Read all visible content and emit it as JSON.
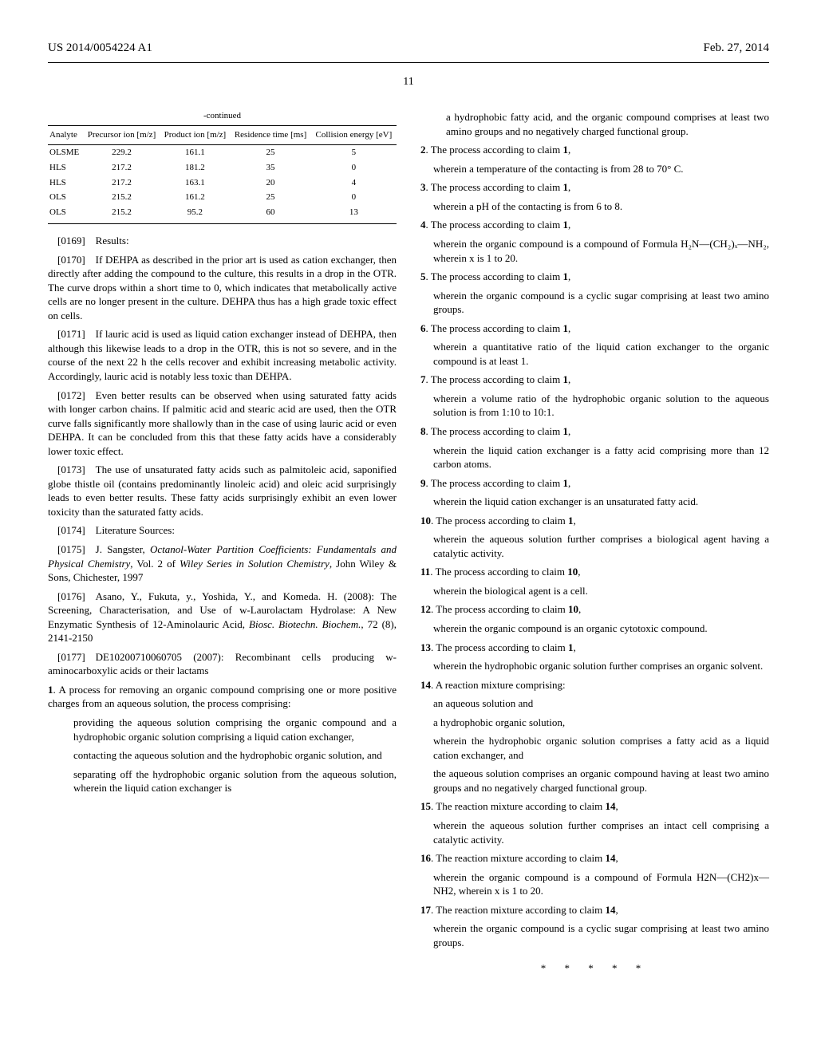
{
  "header": {
    "publication_number": "US 2014/0054224 A1",
    "publication_date": "Feb. 27, 2014",
    "page_number": "11"
  },
  "table": {
    "continued": "-continued",
    "columns": [
      "Analyte",
      "Precursor ion [m/z]",
      "Product ion [m/z]",
      "Residence time [ms]",
      "Collision energy [eV]"
    ],
    "rows": [
      [
        "OLSME",
        "229.2",
        "161.1",
        "25",
        "5"
      ],
      [
        "HLS",
        "217.2",
        "181.2",
        "35",
        "0"
      ],
      [
        "HLS",
        "217.2",
        "163.1",
        "20",
        "4"
      ],
      [
        "OLS",
        "215.2",
        "161.2",
        "25",
        "0"
      ],
      [
        "OLS",
        "215.2",
        "95.2",
        "60",
        "13"
      ]
    ]
  },
  "left_paragraphs": [
    {
      "num": "[0169]",
      "text": "Results:"
    },
    {
      "num": "[0170]",
      "text": "If DEHPA as described in the prior art is used as cation exchanger, then directly after adding the compound to the culture, this results in a drop in the OTR. The curve drops within a short time to 0, which indicates that metabolically active cells are no longer present in the culture. DEHPA thus has a high grade toxic effect on cells."
    },
    {
      "num": "[0171]",
      "text": "If lauric acid is used as liquid cation exchanger instead of DEHPA, then although this likewise leads to a drop in the OTR, this is not so severe, and in the course of the next 22 h the cells recover and exhibit increasing metabolic activity. Accordingly, lauric acid is notably less toxic than DEHPA."
    },
    {
      "num": "[0172]",
      "text": "Even better results can be observed when using saturated fatty acids with longer carbon chains. If palmitic acid and stearic acid are used, then the OTR curve falls significantly more shallowly than in the case of using lauric acid or even DEHPA. It can be concluded from this that these fatty acids have a considerably lower toxic effect."
    },
    {
      "num": "[0173]",
      "text": "The use of unsaturated fatty acids such as palmitoleic acid, saponified globe thistle oil (contains predominantly linoleic acid) and oleic acid surprisingly leads to even better results. These fatty acids surprisingly exhibit an even lower toxicity than the saturated fatty acids."
    },
    {
      "num": "[0174]",
      "text": "Literature Sources:"
    },
    {
      "num": "[0175]",
      "text": "J. Sangster, ",
      "italic": "Octanol-Water Partition Coefficients: Fundamentals and Physical Chemistry",
      "text2": ", Vol. 2 of ",
      "italic2": "Wiley Series in Solution Chemistry",
      "text3": ", John Wiley & Sons, Chichester, 1997"
    },
    {
      "num": "[0176]",
      "text": "Asano, Y., Fukuta, y., Yoshida, Y., and Komeda. H. (2008): The Screening, Characterisation, and Use of w-Laurolactam Hydrolase: A New Enzymatic Synthesis of 12-Aminolauric Acid, ",
      "italic": "Biosc. Biotechn. Biochem.,",
      "text2": " 72 (8), 2141-2150"
    },
    {
      "num": "[0177]",
      "text": "DE10200710060705 (2007): Recombinant cells producing w-aminocarboxylic acids or their lactams"
    }
  ],
  "claim1": {
    "num": "1",
    "intro": ". A process for removing an organic compound comprising one or more positive charges from an aqueous solution, the process comprising:",
    "parts": [
      "providing the aqueous solution comprising the organic compound and a hydrophobic organic solution comprising a liquid cation exchanger,",
      "contacting the aqueous solution and the hydrophobic organic solution, and",
      "separating off the hydrophobic organic solution from the aqueous solution, wherein the liquid cation exchanger is"
    ]
  },
  "right_top": "a hydrophobic fatty acid, and the organic compound comprises at least two amino groups and no negatively charged functional group.",
  "claims": [
    {
      "num": "2",
      "intro": ". The process according to claim ",
      "ref": "1",
      "tail": ",",
      "body": "wherein a temperature of the contacting is from 28 to 70° C."
    },
    {
      "num": "3",
      "intro": ". The process according to claim ",
      "ref": "1",
      "tail": ",",
      "body": "wherein a pH of the contacting is from 6 to 8."
    },
    {
      "num": "4",
      "intro": ". The process according to claim ",
      "ref": "1",
      "tail": ",",
      "body": "wherein the organic compound is a compound of Formula H₂N—(CH₂)ₓ—NH₂, wherein x is 1 to 20."
    },
    {
      "num": "5",
      "intro": ". The process according to claim ",
      "ref": "1",
      "tail": ",",
      "body": "wherein the organic compound is a cyclic sugar comprising at least two amino groups."
    },
    {
      "num": "6",
      "intro": ". The process according to claim ",
      "ref": "1",
      "tail": ",",
      "body": "wherein a quantitative ratio of the liquid cation exchanger to the organic compound is at least 1."
    },
    {
      "num": "7",
      "intro": ". The process according to claim ",
      "ref": "1",
      "tail": ",",
      "body": "wherein a volume ratio of the hydrophobic organic solution to the aqueous solution is from 1:10 to 10:1."
    },
    {
      "num": "8",
      "intro": ". The process according to claim ",
      "ref": "1",
      "tail": ",",
      "body": "wherein the liquid cation exchanger is a fatty acid comprising more than 12 carbon atoms."
    },
    {
      "num": "9",
      "intro": ". The process according to claim ",
      "ref": "1",
      "tail": ",",
      "body": "wherein the liquid cation exchanger is an unsaturated fatty acid."
    },
    {
      "num": "10",
      "intro": ". The process according to claim ",
      "ref": "1",
      "tail": ",",
      "body": "wherein the aqueous solution further comprises a biological agent having a catalytic activity."
    },
    {
      "num": "11",
      "intro": ". The process according to claim ",
      "ref": "10",
      "tail": ",",
      "body": "wherein the biological agent is a cell."
    },
    {
      "num": "12",
      "intro": ". The process according to claim ",
      "ref": "10",
      "tail": ",",
      "body": "wherein the organic compound is an organic cytotoxic compound."
    },
    {
      "num": "13",
      "intro": ". The process according to claim ",
      "ref": "1",
      "tail": ",",
      "body": "wherein the hydrophobic organic solution further comprises an organic solvent."
    }
  ],
  "claim14": {
    "num": "14",
    "intro": ". A reaction mixture comprising:",
    "parts": [
      "an aqueous solution and",
      "a hydrophobic organic solution,",
      "wherein the hydrophobic organic solution comprises a fatty acid as a liquid cation exchanger, and",
      "the aqueous solution comprises an organic compound having at least two amino groups and no negatively charged functional group."
    ]
  },
  "claims2": [
    {
      "num": "15",
      "intro": ". The reaction mixture according to claim ",
      "ref": "14",
      "tail": ",",
      "body": "wherein the aqueous solution further comprises an intact cell comprising a catalytic activity."
    },
    {
      "num": "16",
      "intro": ". The reaction mixture according to claim ",
      "ref": "14",
      "tail": ",",
      "body": "wherein the organic compound is a compound of Formula H2N—(CH2)x—NH2, wherein x is 1 to 20."
    },
    {
      "num": "17",
      "intro": ". The reaction mixture according to claim ",
      "ref": "14",
      "tail": ",",
      "body": "wherein the organic compound is a cyclic sugar comprising at least two amino groups."
    }
  ],
  "end_marks": "* * * * *"
}
